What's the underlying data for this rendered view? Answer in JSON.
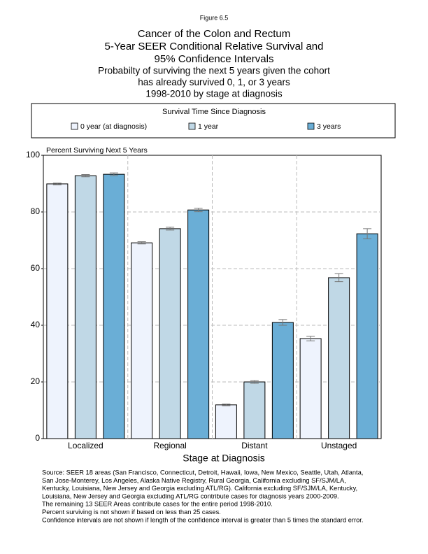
{
  "chart_data": {
    "type": "bar",
    "figure_label": "Figure 6.5",
    "title": [
      "Cancer of the Colon and Rectum",
      "5-Year SEER Conditional Relative Survival and",
      "95% Confidence Intervals"
    ],
    "subtitle": [
      "Probabilty of surviving the next 5 years given the cohort",
      "has already survived 0, 1, or 3 years",
      "1998-2010 by stage at diagnosis"
    ],
    "legend_title": "Survival Time Since Diagnosis",
    "y_label": "Percent Surviving Next 5 Years",
    "x_label": "Stage at Diagnosis",
    "categories": [
      "Localized",
      "Regional",
      "Distant",
      "Unstaged"
    ],
    "series": [
      {
        "name": "0 year (at diagnosis)",
        "color": "#eef3fd",
        "values": [
          89.9,
          69.1,
          11.9,
          35.3
        ],
        "errors": [
          0.3,
          0.4,
          0.3,
          0.8
        ]
      },
      {
        "name": "1 year",
        "color": "#c0d8e6",
        "values": [
          92.8,
          74.1,
          20.0,
          56.8
        ],
        "errors": [
          0.4,
          0.5,
          0.5,
          1.4
        ]
      },
      {
        "name": "3 years",
        "color": "#6aaed6",
        "values": [
          93.3,
          80.7,
          41.0,
          72.3
        ],
        "errors": [
          0.5,
          0.6,
          1.0,
          1.8
        ]
      }
    ],
    "ylim": [
      0,
      100
    ],
    "yticks": [
      0,
      20,
      40,
      60,
      80,
      100
    ],
    "grid": true,
    "notes": [
      "Source:  SEER 18 areas (San Francisco, Connecticut, Detroit, Hawaii, Iowa, New Mexico, Seattle, Utah, Atlanta,",
      "San Jose-Monterey, Los Angeles, Alaska Native Registry, Rural Georgia, California excluding SF/SJM/LA,",
      "Kentucky, Louisiana, New Jersey and Georgia excluding ATL/RG). California excluding SF/SJM/LA, Kentucky,",
      "Louisiana, New Jersey and Georgia excluding ATL/RG contribute cases for diagnosis years 2000-2009.",
      "The remaining 13 SEER Areas contribute cases for the entire period 1998-2010.",
      "Percent surviving is not shown if based on less than 25 cases.",
      "Confidence intervals are not shown if length of the confidence interval is greater than 5 times the standard error."
    ]
  }
}
